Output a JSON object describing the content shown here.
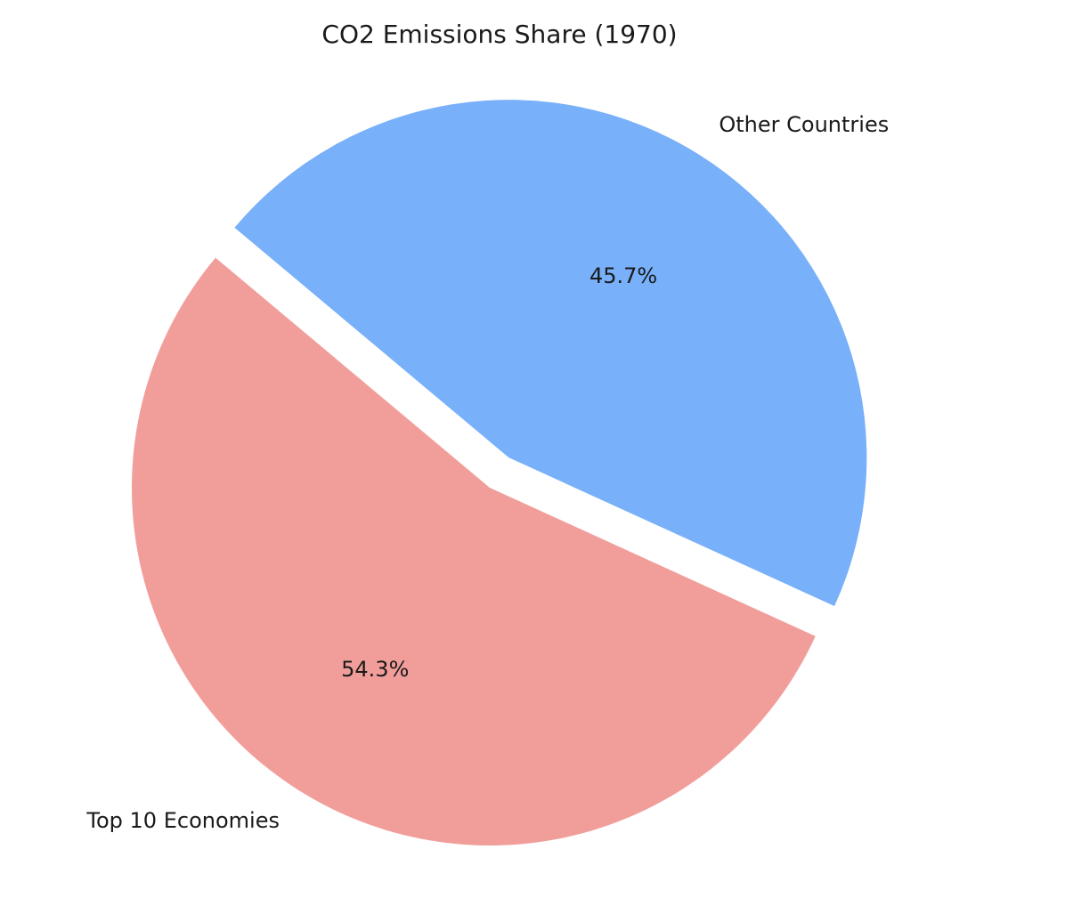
{
  "chart_data": {
    "type": "pie",
    "title": "CO2 Emissions Share (1970)",
    "slices": [
      {
        "label": "Top 10 Economies",
        "value": 54.3,
        "pct_label": "54.3%",
        "color": "#f19e9b",
        "exploded": false
      },
      {
        "label": "Other Countries",
        "value": 45.7,
        "pct_label": "45.7%",
        "color": "#78b0f9",
        "exploded": true
      }
    ]
  }
}
